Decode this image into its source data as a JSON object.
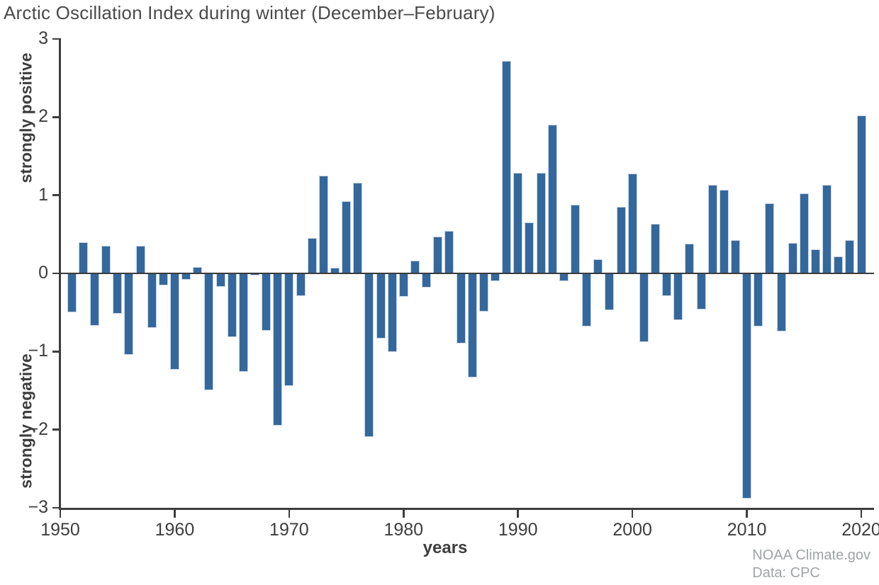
{
  "title": "Arctic Oscillation Index during winter (December–February)",
  "credit": {
    "line1": "NOAA Climate.gov",
    "line2": "Data: CPC"
  },
  "chart_data": {
    "type": "bar",
    "title": "Arctic Oscillation Index during winter (December–February)",
    "xlabel": "years",
    "ylabel_positive": "strongly positive",
    "ylabel_negative": "strongly negative",
    "ylim": [
      -3,
      3
    ],
    "xlim": [
      1950,
      2021.5
    ],
    "yticks": [
      3,
      2,
      1,
      0,
      -1,
      -2,
      -3
    ],
    "xticks": [
      1950,
      1960,
      1970,
      1980,
      1990,
      2000,
      2010,
      2020
    ],
    "grid": false,
    "legend": null,
    "bar_color": "#34689c",
    "bar_edge_color": "#c9d5e8",
    "axis_color": "#3d3d3d",
    "years": [
      1951,
      1952,
      1953,
      1954,
      1955,
      1956,
      1957,
      1958,
      1959,
      1960,
      1961,
      1962,
      1963,
      1964,
      1965,
      1966,
      1967,
      1968,
      1969,
      1970,
      1971,
      1972,
      1973,
      1974,
      1975,
      1976,
      1977,
      1978,
      1979,
      1980,
      1981,
      1982,
      1983,
      1984,
      1985,
      1986,
      1987,
      1988,
      1989,
      1990,
      1991,
      1992,
      1993,
      1994,
      1995,
      1996,
      1997,
      1998,
      1999,
      2000,
      2001,
      2002,
      2003,
      2004,
      2005,
      2006,
      2007,
      2008,
      2009,
      2010,
      2011,
      2012,
      2013,
      2014,
      2015,
      2016,
      2017,
      2018,
      2019,
      2020
    ],
    "values": [
      -0.5,
      0.4,
      -0.67,
      0.35,
      -0.52,
      -1.04,
      0.35,
      -0.7,
      -0.15,
      -1.23,
      -0.08,
      0.08,
      -1.5,
      -0.17,
      -0.82,
      -1.26,
      -0.03,
      -0.73,
      -1.95,
      -1.44,
      -0.29,
      0.45,
      1.25,
      0.07,
      0.92,
      1.16,
      -2.09,
      -0.83,
      -1.01,
      -0.3,
      0.16,
      -0.18,
      0.47,
      0.54,
      -0.9,
      -1.33,
      -0.49,
      -0.1,
      2.72,
      1.29,
      0.65,
      1.29,
      1.9,
      -0.1,
      0.88,
      -0.68,
      0.18,
      -0.47,
      0.85,
      1.28,
      -0.88,
      0.63,
      -0.29,
      -0.6,
      0.38,
      -0.46,
      1.13,
      1.07,
      0.43,
      -2.88,
      -0.68,
      0.9,
      -0.74,
      0.39,
      1.02,
      0.31,
      1.13,
      0.22,
      0.43,
      2.02
    ]
  }
}
